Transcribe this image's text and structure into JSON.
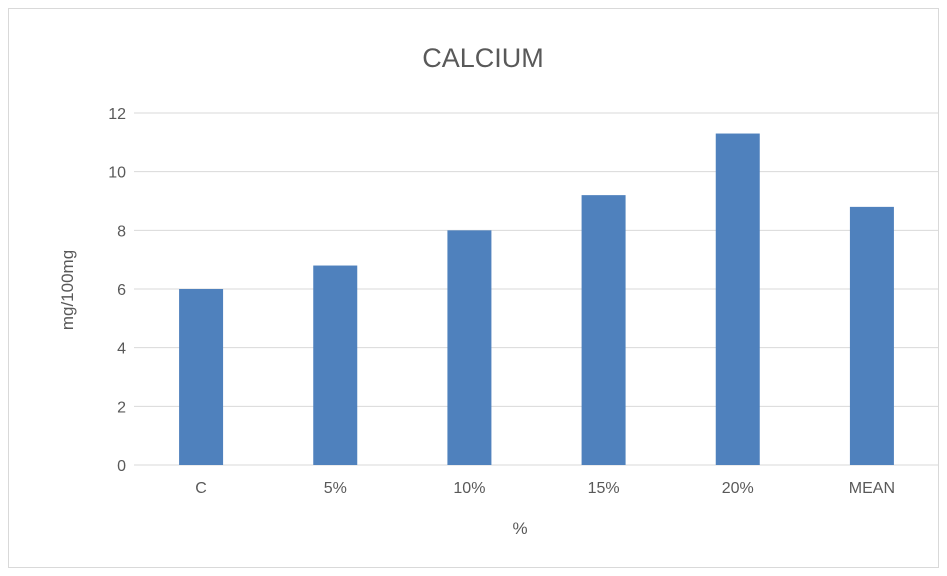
{
  "chart_data": {
    "type": "bar",
    "title": "CALCIUM",
    "xlabel": "%",
    "ylabel": "mg/100mg",
    "categories": [
      "C",
      "5%",
      "10%",
      "15%",
      "20%",
      "MEAN"
    ],
    "values": [
      6,
      6.8,
      8,
      9.2,
      11.3,
      8.8
    ],
    "ylim": [
      0,
      12
    ],
    "yticks": [
      "0",
      "2",
      "4",
      "6",
      "8",
      "10",
      "12"
    ],
    "grid": true,
    "legend": "none",
    "bar_color": "#4f81bd",
    "grid_color": "#d9d9d9"
  }
}
